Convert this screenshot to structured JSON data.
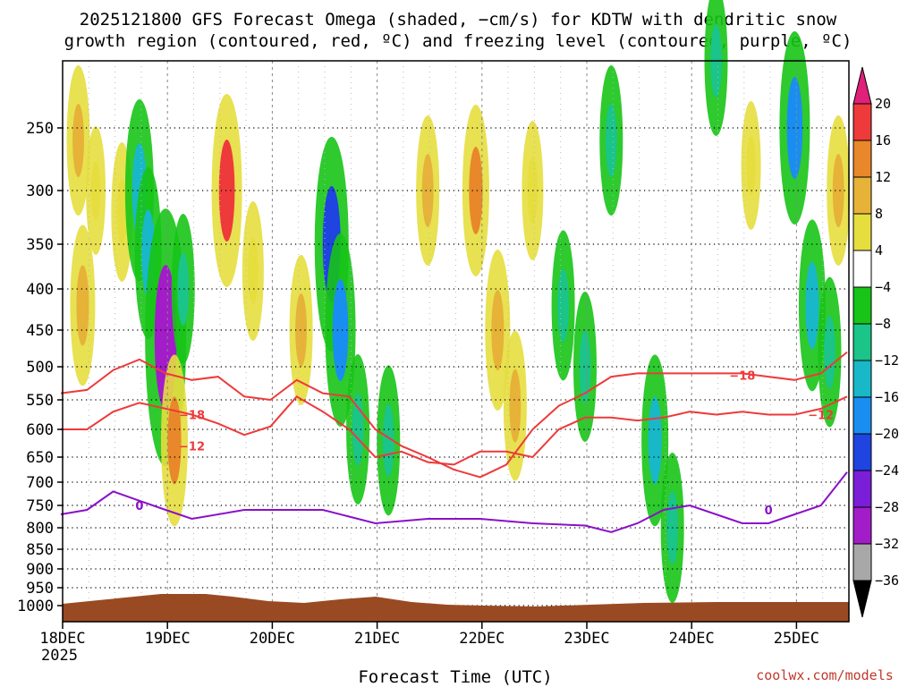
{
  "chart_data": {
    "type": "heatmap",
    "title_line1": "2025121800 GFS Forecast Omega (shaded, −cm/s) for KDTW with dendritic snow",
    "title_line2": "growth region (contoured, red, ºC) and freezing level (contoured, purple, ºC)",
    "xlabel": "Forecast Time (UTC)",
    "x_ticks": [
      "18DEC",
      "19DEC",
      "20DEC",
      "21DEC",
      "22DEC",
      "23DEC",
      "24DEC",
      "25DEC"
    ],
    "x_year": "2025",
    "x_range_hours": [
      0,
      180
    ],
    "y_ticks": [
      "250",
      "300",
      "350",
      "400",
      "450",
      "500",
      "550",
      "600",
      "650",
      "700",
      "750",
      "800",
      "850",
      "900",
      "950",
      "1000"
    ],
    "y_range_hPa": [
      200,
      1000
    ],
    "colorbar": {
      "labels": [
        "20",
        "16",
        "12",
        "8",
        "4",
        "−4",
        "−8",
        "−12",
        "−16",
        "−20",
        "−24",
        "−28",
        "−32",
        "−36"
      ],
      "colors": [
        "#e0207a",
        "#ee3a3a",
        "#e8882a",
        "#e6b238",
        "#e6de3e",
        "#ffffff",
        "#17c417",
        "#1bc488",
        "#18b8c8",
        "#1a8ef0",
        "#1f44e0",
        "#7a1ed8",
        "#a21cc8",
        "#a8a8a8",
        "#000000"
      ]
    },
    "contours": {
      "dgz_minus12_label": "−12",
      "dgz_minus18_label": "−18",
      "freezing_label": "0",
      "dgz_minus12_hPa": [
        [
          0,
          600
        ],
        [
          6,
          600
        ],
        [
          12,
          570
        ],
        [
          18,
          555
        ],
        [
          24,
          565
        ],
        [
          30,
          575
        ],
        [
          36,
          590
        ],
        [
          42,
          610
        ],
        [
          48,
          595
        ],
        [
          54,
          545
        ],
        [
          60,
          570
        ],
        [
          66,
          600
        ],
        [
          72,
          650
        ],
        [
          78,
          640
        ],
        [
          84,
          660
        ],
        [
          90,
          665
        ],
        [
          96,
          640
        ],
        [
          102,
          640
        ],
        [
          108,
          650
        ],
        [
          114,
          600
        ],
        [
          120,
          580
        ],
        [
          126,
          580
        ],
        [
          132,
          585
        ],
        [
          138,
          580
        ],
        [
          144,
          570
        ],
        [
          150,
          575
        ],
        [
          156,
          570
        ],
        [
          162,
          575
        ],
        [
          168,
          575
        ],
        [
          174,
          565
        ],
        [
          180,
          545
        ]
      ],
      "dgz_minus18_hPa": [
        [
          0,
          540
        ],
        [
          6,
          535
        ],
        [
          12,
          505
        ],
        [
          18,
          490
        ],
        [
          24,
          510
        ],
        [
          30,
          520
        ],
        [
          36,
          515
        ],
        [
          42,
          545
        ],
        [
          48,
          550
        ],
        [
          54,
          520
        ],
        [
          60,
          540
        ],
        [
          66,
          545
        ],
        [
          72,
          600
        ],
        [
          78,
          630
        ],
        [
          84,
          650
        ],
        [
          90,
          675
        ],
        [
          96,
          690
        ],
        [
          102,
          665
        ],
        [
          108,
          600
        ],
        [
          114,
          560
        ],
        [
          120,
          540
        ],
        [
          126,
          515
        ],
        [
          132,
          510
        ],
        [
          138,
          510
        ],
        [
          144,
          510
        ],
        [
          150,
          510
        ],
        [
          156,
          510
        ],
        [
          162,
          515
        ],
        [
          168,
          520
        ],
        [
          174,
          510
        ],
        [
          180,
          480
        ]
      ],
      "freezing_hPa": [
        [
          0,
          770
        ],
        [
          6,
          760
        ],
        [
          12,
          720
        ],
        [
          18,
          740
        ],
        [
          24,
          760
        ],
        [
          30,
          780
        ],
        [
          42,
          760
        ],
        [
          60,
          760
        ],
        [
          66,
          775
        ],
        [
          72,
          790
        ],
        [
          84,
          780
        ],
        [
          96,
          780
        ],
        [
          108,
          790
        ],
        [
          120,
          795
        ],
        [
          126,
          810
        ],
        [
          132,
          790
        ],
        [
          138,
          760
        ],
        [
          144,
          750
        ],
        [
          150,
          770
        ],
        [
          156,
          790
        ],
        [
          162,
          790
        ],
        [
          168,
          770
        ],
        [
          174,
          750
        ],
        [
          180,
          680
        ]
      ]
    },
    "omega_cells_neg_cm_s": [
      {
        "hour": 4,
        "p": 260,
        "value": 8
      },
      {
        "hour": 5,
        "p": 420,
        "value": 10
      },
      {
        "hour": 8,
        "p": 300,
        "value": 4
      },
      {
        "hour": 14,
        "p": 320,
        "value": 6
      },
      {
        "hour": 18,
        "p": 300,
        "value": -14
      },
      {
        "hour": 20,
        "p": 360,
        "value": -12
      },
      {
        "hour": 24,
        "p": 460,
        "value": -28
      },
      {
        "hour": 26,
        "p": 620,
        "value": 12
      },
      {
        "hour": 28,
        "p": 400,
        "value": -8
      },
      {
        "hour": 38,
        "p": 300,
        "value": 16
      },
      {
        "hour": 44,
        "p": 380,
        "value": 6
      },
      {
        "hour": 55,
        "p": 450,
        "value": 8
      },
      {
        "hour": 62,
        "p": 350,
        "value": -20
      },
      {
        "hour": 64,
        "p": 450,
        "value": -16
      },
      {
        "hour": 68,
        "p": 600,
        "value": -8
      },
      {
        "hour": 75,
        "p": 620,
        "value": -8
      },
      {
        "hour": 84,
        "p": 300,
        "value": 8
      },
      {
        "hour": 95,
        "p": 300,
        "value": 12
      },
      {
        "hour": 100,
        "p": 450,
        "value": 10
      },
      {
        "hour": 104,
        "p": 560,
        "value": 8
      },
      {
        "hour": 108,
        "p": 300,
        "value": 6
      },
      {
        "hour": 115,
        "p": 420,
        "value": -8
      },
      {
        "hour": 120,
        "p": 500,
        "value": -8
      },
      {
        "hour": 126,
        "p": 260,
        "value": -8
      },
      {
        "hour": 136,
        "p": 620,
        "value": -12
      },
      {
        "hour": 140,
        "p": 800,
        "value": -8
      },
      {
        "hour": 150,
        "p": 200,
        "value": -8
      },
      {
        "hour": 158,
        "p": 280,
        "value": 4
      },
      {
        "hour": 168,
        "p": 250,
        "value": -16
      },
      {
        "hour": 172,
        "p": 420,
        "value": -12
      },
      {
        "hour": 176,
        "p": 480,
        "value": -8
      },
      {
        "hour": 178,
        "p": 300,
        "value": 8
      }
    ]
  },
  "credit": "coolwx.com/models"
}
